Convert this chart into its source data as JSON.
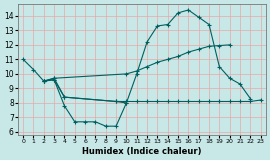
{
  "xlabel": "Humidex (Indice chaleur)",
  "xlim": [
    -0.5,
    23.5
  ],
  "ylim": [
    5.8,
    14.8
  ],
  "yticks": [
    6,
    7,
    8,
    9,
    10,
    11,
    12,
    13,
    14
  ],
  "xticks": [
    0,
    1,
    2,
    3,
    4,
    5,
    6,
    7,
    8,
    9,
    10,
    11,
    12,
    13,
    14,
    15,
    16,
    17,
    18,
    19,
    20,
    21,
    22,
    23
  ],
  "bg_color": "#c8e8e8",
  "line_color": "#006060",
  "grid_color": "#e8a8a8",
  "curve1_x": [
    0,
    1,
    2,
    3,
    4,
    5,
    6,
    7,
    8,
    9,
    10,
    11,
    12,
    13,
    14,
    15,
    16,
    17,
    18,
    19,
    20,
    21,
    22
  ],
  "curve1_y": [
    11.0,
    10.3,
    9.5,
    9.6,
    7.8,
    6.7,
    6.7,
    6.7,
    6.4,
    6.4,
    8.0,
    10.0,
    12.2,
    13.3,
    13.4,
    14.2,
    14.4,
    13.9,
    13.4,
    10.5,
    9.7,
    9.3,
    8.3
  ],
  "curve2_x": [
    2,
    3,
    10,
    11,
    12,
    13,
    14,
    15,
    16,
    17,
    18,
    19,
    20
  ],
  "curve2_y": [
    9.5,
    9.7,
    10.0,
    10.2,
    10.5,
    10.8,
    11.0,
    11.2,
    11.5,
    11.7,
    11.9,
    11.95,
    12.0
  ],
  "curve3_x": [
    2,
    3,
    4,
    9,
    10,
    11,
    12,
    13,
    14,
    15,
    16,
    17,
    18,
    19,
    20,
    21,
    22,
    23
  ],
  "curve3_y": [
    9.5,
    9.6,
    8.4,
    8.1,
    8.1,
    8.1,
    8.1,
    8.1,
    8.1,
    8.1,
    8.1,
    8.1,
    8.1,
    8.1,
    8.1,
    8.1,
    8.1,
    8.2
  ],
  "curve4_x": [
    2,
    3,
    4,
    9,
    10
  ],
  "curve4_y": [
    9.5,
    9.7,
    8.4,
    8.1,
    8.0
  ]
}
